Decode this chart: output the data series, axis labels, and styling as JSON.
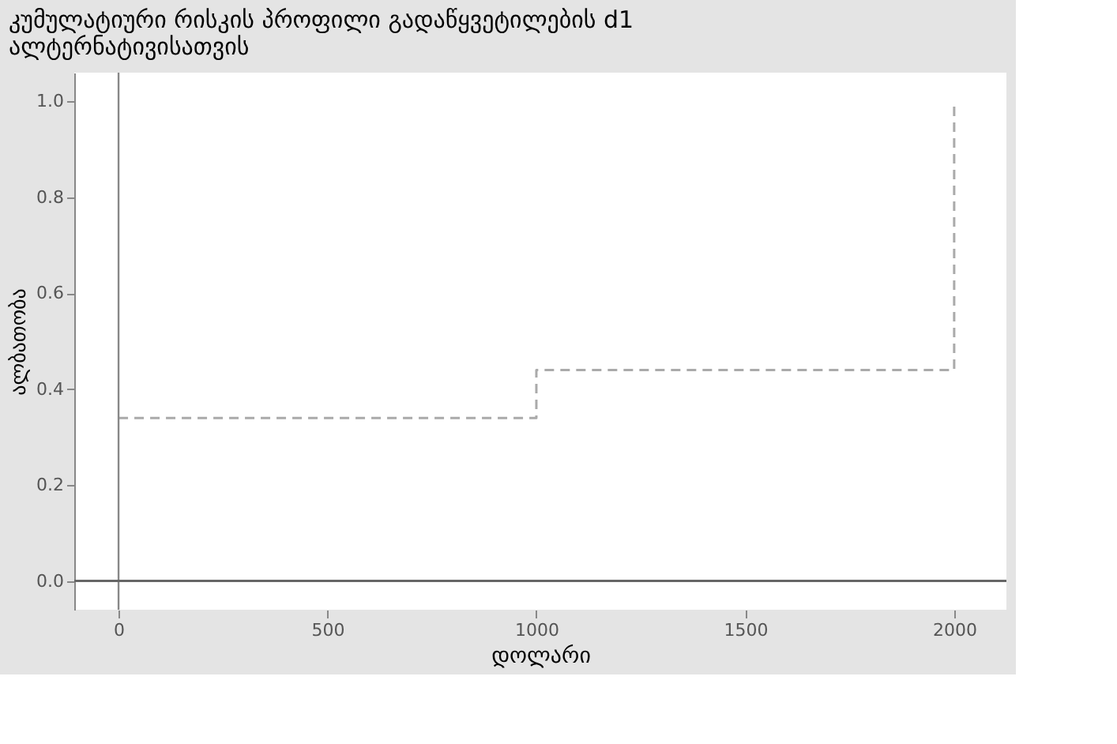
{
  "chart_data": {
    "type": "step",
    "title": "კუმულატიური რისკის პროფილი გადაწყვეტილების d1 ალტერნატივისათვის",
    "xlabel": "დოლარი",
    "ylabel": "ალბათობა",
    "x": [
      0,
      1000,
      2000
    ],
    "series": [
      {
        "color": "#aaaaaa",
        "values": [
          0.34,
          0.44,
          1.0
        ],
        "line_style": "dashed"
      }
    ],
    "xlim": [
      -106,
      2125
    ],
    "ylim": [
      -0.06,
      1.06
    ],
    "xticks": [
      0,
      500,
      1000,
      1500,
      2000
    ],
    "yticks": [
      {
        "value": 0,
        "label": "0.0"
      },
      0.2,
      0.4,
      0.6,
      0.8,
      {
        "value": 1,
        "label": "1.0"
      }
    ],
    "ref_lines": [
      {
        "axis": "x",
        "value": 0,
        "color": "#888888"
      },
      {
        "axis": "y",
        "value": 0,
        "color": "#666666"
      }
    ],
    "grid": false,
    "marker": "none"
  }
}
